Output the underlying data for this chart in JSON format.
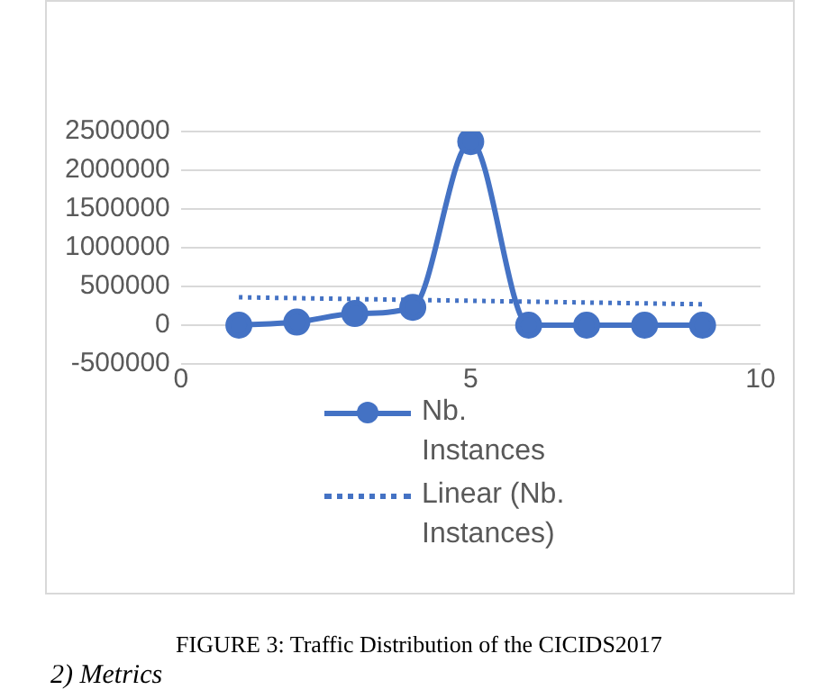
{
  "chart_data": {
    "type": "line",
    "x": [
      1,
      2,
      3,
      4,
      5,
      6,
      7,
      8,
      9
    ],
    "series": [
      {
        "name": "Nb. Instances",
        "color": "#4472c4",
        "values": [
          0,
          40000,
          150000,
          230000,
          2370000,
          0,
          0,
          0,
          0
        ],
        "marker": "circle",
        "line_style": "solid"
      },
      {
        "name": "Linear (Nb. Instances)",
        "type": "line",
        "color": "#4472c4",
        "x": [
          1,
          9
        ],
        "values": [
          360000,
          270000
        ],
        "marker": "none",
        "line_style": "dotted"
      }
    ],
    "xlim": [
      0,
      10
    ],
    "xticks": [
      0,
      5,
      10
    ],
    "ylim": [
      -500000,
      2500000
    ],
    "yticks": [
      -500000,
      0,
      500000,
      1000000,
      1500000,
      2000000,
      2500000
    ],
    "grid": "y",
    "legend": "bottom",
    "annotations": [
      "FIGURE 3: Traffic Distribution of the CICIDS2017",
      "2) Metrics"
    ]
  }
}
